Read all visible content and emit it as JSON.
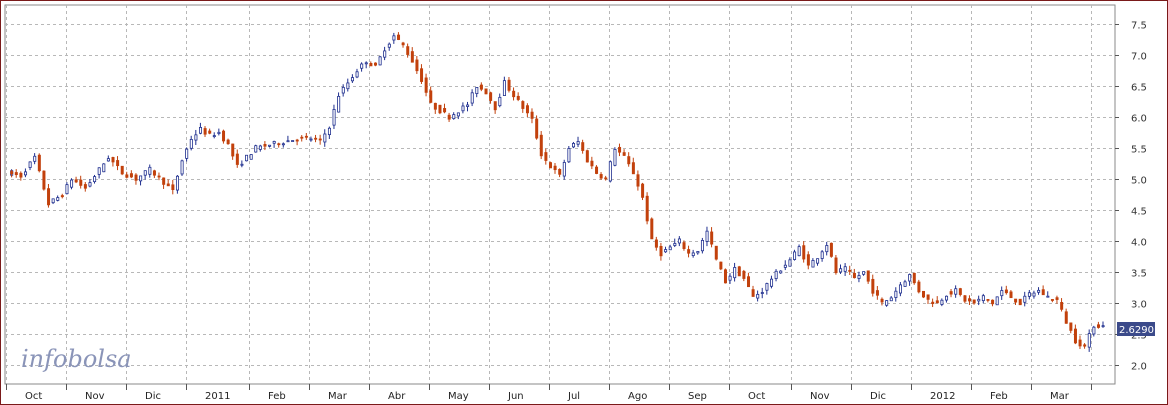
{
  "watermark": "infobolsa",
  "last_value_label": "2.6290",
  "colors": {
    "up": "#1f2f8f",
    "down": "#c2410c",
    "grid": "#b8b8b8",
    "frame": "#7a1a1a",
    "badge": "#3b4a8a"
  },
  "chart_data": {
    "type": "candlestick",
    "title": "",
    "xlabel": "",
    "ylabel": "",
    "ylim": [
      1.7,
      7.8
    ],
    "y_ticks": [
      "2.0",
      "2.5",
      "3.0",
      "3.5",
      "4.0",
      "4.5",
      "5.0",
      "5.5",
      "6.0",
      "6.5",
      "7.0",
      "7.5"
    ],
    "grid": true,
    "x_axis_labels": [
      "Oct",
      "Nov",
      "Dic",
      "2011",
      "Feb",
      "Mar",
      "Abr",
      "May",
      "Jun",
      "Jul",
      "Ago",
      "Sep",
      "Oct",
      "Nov",
      "Dic",
      "2012",
      "Feb",
      "Mar"
    ],
    "approximate_close_path": [
      [
        0,
        5.1
      ],
      [
        3,
        5.05
      ],
      [
        6,
        5.35
      ],
      [
        9,
        4.6
      ],
      [
        12,
        4.75
      ],
      [
        14,
        5.0
      ],
      [
        17,
        4.85
      ],
      [
        20,
        5.15
      ],
      [
        22,
        5.35
      ],
      [
        25,
        5.1
      ],
      [
        28,
        5.0
      ],
      [
        31,
        5.15
      ],
      [
        34,
        4.95
      ],
      [
        36,
        4.8
      ],
      [
        38,
        5.3
      ],
      [
        40,
        5.65
      ],
      [
        42,
        5.8
      ],
      [
        44,
        5.7
      ],
      [
        46,
        5.75
      ],
      [
        48,
        5.55
      ],
      [
        50,
        5.2
      ],
      [
        52,
        5.35
      ],
      [
        54,
        5.5
      ],
      [
        57,
        5.55
      ],
      [
        60,
        5.6
      ],
      [
        63,
        5.65
      ],
      [
        66,
        5.65
      ],
      [
        68,
        5.6
      ],
      [
        70,
        5.85
      ],
      [
        72,
        6.35
      ],
      [
        74,
        6.55
      ],
      [
        76,
        6.75
      ],
      [
        78,
        6.9
      ],
      [
        80,
        6.8
      ],
      [
        82,
        7.1
      ],
      [
        84,
        7.3
      ],
      [
        86,
        7.15
      ],
      [
        88,
        6.9
      ],
      [
        90,
        6.6
      ],
      [
        92,
        6.2
      ],
      [
        94,
        6.1
      ],
      [
        96,
        6.0
      ],
      [
        98,
        6.1
      ],
      [
        100,
        6.2
      ],
      [
        102,
        6.5
      ],
      [
        104,
        6.4
      ],
      [
        106,
        6.15
      ],
      [
        108,
        6.55
      ],
      [
        110,
        6.35
      ],
      [
        112,
        6.15
      ],
      [
        114,
        5.95
      ],
      [
        116,
        5.4
      ],
      [
        118,
        5.2
      ],
      [
        120,
        5.05
      ],
      [
        122,
        5.5
      ],
      [
        124,
        5.6
      ],
      [
        126,
        5.3
      ],
      [
        128,
        5.1
      ],
      [
        130,
        5.0
      ],
      [
        132,
        5.5
      ],
      [
        134,
        5.35
      ],
      [
        136,
        5.1
      ],
      [
        138,
        4.7
      ],
      [
        140,
        4.0
      ],
      [
        142,
        3.8
      ],
      [
        144,
        3.9
      ],
      [
        146,
        4.0
      ],
      [
        148,
        3.8
      ],
      [
        150,
        3.85
      ],
      [
        152,
        4.15
      ],
      [
        154,
        3.7
      ],
      [
        156,
        3.35
      ],
      [
        158,
        3.55
      ],
      [
        160,
        3.4
      ],
      [
        162,
        3.1
      ],
      [
        164,
        3.2
      ],
      [
        166,
        3.4
      ],
      [
        168,
        3.55
      ],
      [
        170,
        3.7
      ],
      [
        172,
        3.9
      ],
      [
        174,
        3.6
      ],
      [
        176,
        3.75
      ],
      [
        178,
        3.95
      ],
      [
        180,
        3.5
      ],
      [
        182,
        3.55
      ],
      [
        184,
        3.4
      ],
      [
        186,
        3.5
      ],
      [
        188,
        3.2
      ],
      [
        190,
        3.0
      ],
      [
        192,
        3.1
      ],
      [
        194,
        3.3
      ],
      [
        196,
        3.45
      ],
      [
        198,
        3.2
      ],
      [
        200,
        3.05
      ],
      [
        202,
        3.0
      ],
      [
        204,
        3.15
      ],
      [
        206,
        3.2
      ],
      [
        208,
        3.05
      ],
      [
        210,
        3.0
      ],
      [
        212,
        3.1
      ],
      [
        214,
        3.0
      ],
      [
        216,
        3.2
      ],
      [
        218,
        3.1
      ],
      [
        220,
        3.0
      ],
      [
        222,
        3.15
      ],
      [
        224,
        3.2
      ],
      [
        226,
        3.1
      ],
      [
        228,
        3.05
      ],
      [
        230,
        2.7
      ],
      [
        232,
        2.4
      ],
      [
        234,
        2.3
      ],
      [
        236,
        2.65
      ],
      [
        238,
        2.63
      ]
    ]
  }
}
